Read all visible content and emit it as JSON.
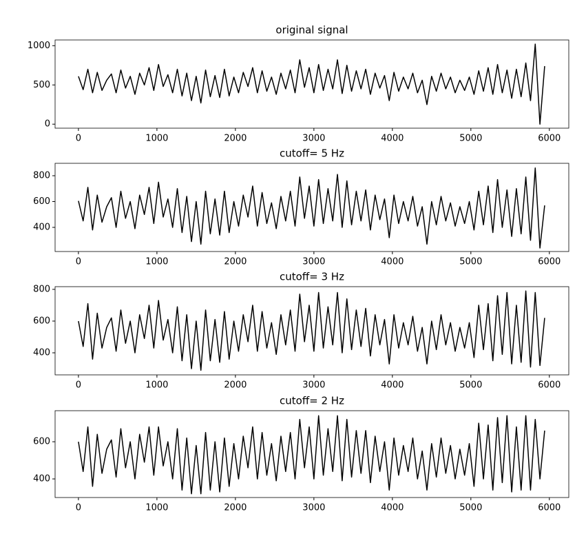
{
  "chart_data": [
    {
      "type": "line",
      "title": "original signal",
      "color": "#000000",
      "x": [
        0,
        60,
        120,
        180,
        240,
        300,
        360,
        420,
        480,
        540,
        600,
        660,
        720,
        780,
        840,
        900,
        960,
        1020,
        1080,
        1140,
        1200,
        1260,
        1320,
        1380,
        1440,
        1500,
        1560,
        1620,
        1680,
        1740,
        1800,
        1860,
        1920,
        1980,
        2040,
        2100,
        2160,
        2220,
        2280,
        2340,
        2400,
        2460,
        2520,
        2580,
        2640,
        2700,
        2760,
        2820,
        2880,
        2940,
        3000,
        3060,
        3120,
        3180,
        3240,
        3300,
        3360,
        3420,
        3480,
        3540,
        3600,
        3660,
        3720,
        3780,
        3840,
        3900,
        3960,
        4020,
        4080,
        4140,
        4200,
        4260,
        4320,
        4380,
        4440,
        4500,
        4560,
        4620,
        4680,
        4740,
        4800,
        4860,
        4920,
        4980,
        5040,
        5100,
        5160,
        5220,
        5280,
        5340,
        5400,
        5460,
        5520,
        5580,
        5640,
        5700,
        5760,
        5820,
        5880,
        5940
      ],
      "values": [
        610,
        440,
        700,
        400,
        660,
        430,
        560,
        640,
        400,
        690,
        460,
        610,
        380,
        650,
        500,
        720,
        430,
        760,
        480,
        630,
        400,
        700,
        360,
        650,
        300,
        610,
        270,
        690,
        350,
        620,
        340,
        700,
        360,
        600,
        400,
        660,
        480,
        720,
        400,
        680,
        420,
        600,
        380,
        650,
        450,
        690,
        400,
        820,
        470,
        720,
        400,
        760,
        430,
        700,
        450,
        820,
        390,
        750,
        420,
        680,
        450,
        700,
        380,
        650,
        460,
        620,
        300,
        660,
        420,
        600,
        450,
        650,
        400,
        560,
        250,
        610,
        420,
        650,
        450,
        600,
        400,
        560,
        430,
        600,
        380,
        680,
        420,
        720,
        380,
        760,
        400,
        690,
        330,
        700,
        350,
        780,
        300,
        1020,
        0,
        740
      ],
      "xlim": [
        -297.5,
        6247.5
      ],
      "xticks": [
        0,
        1000,
        2000,
        3000,
        4000,
        5000,
        6000
      ],
      "ylim": [
        -51,
        1073
      ],
      "yticks": [
        0,
        500,
        1000
      ]
    },
    {
      "type": "line",
      "title": "cutoff= 5 Hz",
      "color": "#000000",
      "x": [
        0,
        60,
        120,
        180,
        240,
        300,
        360,
        420,
        480,
        540,
        600,
        660,
        720,
        780,
        840,
        900,
        960,
        1020,
        1080,
        1140,
        1200,
        1260,
        1320,
        1380,
        1440,
        1500,
        1560,
        1620,
        1680,
        1740,
        1800,
        1860,
        1920,
        1980,
        2040,
        2100,
        2160,
        2220,
        2280,
        2340,
        2400,
        2460,
        2520,
        2580,
        2640,
        2700,
        2760,
        2820,
        2880,
        2940,
        3000,
        3060,
        3120,
        3180,
        3240,
        3300,
        3360,
        3420,
        3480,
        3540,
        3600,
        3660,
        3720,
        3780,
        3840,
        3900,
        3960,
        4020,
        4080,
        4140,
        4200,
        4260,
        4320,
        4380,
        4440,
        4500,
        4560,
        4620,
        4680,
        4740,
        4800,
        4860,
        4920,
        4980,
        5040,
        5100,
        5160,
        5220,
        5280,
        5340,
        5400,
        5460,
        5520,
        5580,
        5640,
        5700,
        5760,
        5820,
        5880,
        5940
      ],
      "values": [
        605,
        450,
        710,
        380,
        650,
        440,
        560,
        630,
        400,
        680,
        470,
        600,
        390,
        650,
        500,
        710,
        430,
        750,
        480,
        620,
        400,
        700,
        360,
        640,
        290,
        600,
        270,
        680,
        350,
        620,
        340,
        680,
        360,
        600,
        410,
        650,
        480,
        720,
        410,
        670,
        430,
        590,
        390,
        640,
        450,
        680,
        410,
        790,
        470,
        720,
        410,
        770,
        430,
        700,
        450,
        810,
        400,
        760,
        420,
        680,
        450,
        690,
        380,
        650,
        460,
        620,
        320,
        650,
        430,
        600,
        450,
        640,
        410,
        560,
        270,
        600,
        420,
        640,
        450,
        590,
        410,
        560,
        430,
        600,
        380,
        680,
        420,
        720,
        360,
        770,
        400,
        690,
        330,
        700,
        350,
        790,
        300,
        860,
        240,
        570
      ],
      "xlim": [
        -297.5,
        6247.5
      ],
      "xticks": [
        0,
        1000,
        2000,
        3000,
        4000,
        5000,
        6000
      ],
      "ylim": [
        213,
        896
      ],
      "yticks": [
        400,
        600,
        800
      ]
    },
    {
      "type": "line",
      "title": "cutoff= 3 Hz",
      "color": "#000000",
      "x": [
        0,
        60,
        120,
        180,
        240,
        300,
        360,
        420,
        480,
        540,
        600,
        660,
        720,
        780,
        840,
        900,
        960,
        1020,
        1080,
        1140,
        1200,
        1260,
        1320,
        1380,
        1440,
        1500,
        1560,
        1620,
        1680,
        1740,
        1800,
        1860,
        1920,
        1980,
        2040,
        2100,
        2160,
        2220,
        2280,
        2340,
        2400,
        2460,
        2520,
        2580,
        2640,
        2700,
        2760,
        2820,
        2880,
        2940,
        3000,
        3060,
        3120,
        3180,
        3240,
        3300,
        3360,
        3420,
        3480,
        3540,
        3600,
        3660,
        3720,
        3780,
        3840,
        3900,
        3960,
        4020,
        4080,
        4140,
        4200,
        4260,
        4320,
        4380,
        4440,
        4500,
        4560,
        4620,
        4680,
        4740,
        4800,
        4860,
        4920,
        4980,
        5040,
        5100,
        5160,
        5220,
        5280,
        5340,
        5400,
        5460,
        5520,
        5580,
        5640,
        5700,
        5760,
        5820,
        5880,
        5940
      ],
      "values": [
        600,
        440,
        710,
        360,
        650,
        430,
        560,
        620,
        410,
        670,
        460,
        600,
        400,
        640,
        490,
        700,
        430,
        730,
        480,
        610,
        400,
        690,
        350,
        640,
        300,
        600,
        290,
        670,
        350,
        610,
        340,
        660,
        360,
        600,
        410,
        640,
        470,
        700,
        410,
        660,
        430,
        590,
        390,
        640,
        450,
        670,
        410,
        770,
        470,
        700,
        410,
        780,
        430,
        690,
        450,
        780,
        400,
        740,
        420,
        670,
        440,
        680,
        380,
        640,
        450,
        610,
        330,
        640,
        430,
        590,
        450,
        630,
        410,
        560,
        330,
        600,
        420,
        640,
        450,
        590,
        410,
        560,
        430,
        590,
        370,
        700,
        420,
        710,
        350,
        760,
        390,
        780,
        330,
        700,
        340,
        790,
        310,
        780,
        320,
        620
      ],
      "xlim": [
        -297.5,
        6247.5
      ],
      "xticks": [
        0,
        1000,
        2000,
        3000,
        4000,
        5000,
        6000
      ],
      "ylim": [
        261,
        817
      ],
      "yticks": [
        400,
        600,
        800
      ]
    },
    {
      "type": "line",
      "title": "cutoff= 2 Hz",
      "color": "#000000",
      "x": [
        0,
        60,
        120,
        180,
        240,
        300,
        360,
        420,
        480,
        540,
        600,
        660,
        720,
        780,
        840,
        900,
        960,
        1020,
        1080,
        1140,
        1200,
        1260,
        1320,
        1380,
        1440,
        1500,
        1560,
        1620,
        1680,
        1740,
        1800,
        1860,
        1920,
        1980,
        2040,
        2100,
        2160,
        2220,
        2280,
        2340,
        2400,
        2460,
        2520,
        2580,
        2640,
        2700,
        2760,
        2820,
        2880,
        2940,
        3000,
        3060,
        3120,
        3180,
        3240,
        3300,
        3360,
        3420,
        3480,
        3540,
        3600,
        3660,
        3720,
        3780,
        3840,
        3900,
        3960,
        4020,
        4080,
        4140,
        4200,
        4260,
        4320,
        4380,
        4440,
        4500,
        4560,
        4620,
        4680,
        4740,
        4800,
        4860,
        4920,
        4980,
        5040,
        5100,
        5160,
        5220,
        5280,
        5340,
        5400,
        5460,
        5520,
        5580,
        5640,
        5700,
        5760,
        5820,
        5880,
        5940
      ],
      "values": [
        600,
        440,
        680,
        360,
        640,
        430,
        560,
        610,
        410,
        670,
        460,
        600,
        400,
        640,
        490,
        680,
        420,
        680,
        470,
        600,
        400,
        670,
        340,
        620,
        320,
        580,
        320,
        650,
        340,
        600,
        330,
        620,
        360,
        590,
        400,
        630,
        460,
        680,
        400,
        650,
        420,
        590,
        390,
        630,
        440,
        650,
        400,
        720,
        460,
        680,
        400,
        740,
        420,
        670,
        440,
        740,
        390,
        720,
        410,
        660,
        430,
        660,
        380,
        630,
        440,
        600,
        340,
        620,
        420,
        580,
        440,
        620,
        400,
        550,
        340,
        590,
        410,
        620,
        430,
        580,
        400,
        560,
        420,
        590,
        360,
        700,
        400,
        690,
        340,
        730,
        380,
        740,
        330,
        680,
        340,
        740,
        340,
        720,
        400,
        660
      ],
      "xlim": [
        -297.5,
        6247.5
      ],
      "xticks": [
        0,
        1000,
        2000,
        3000,
        4000,
        5000,
        6000
      ],
      "ylim": [
        300,
        767
      ],
      "yticks": [
        400,
        600
      ]
    }
  ]
}
